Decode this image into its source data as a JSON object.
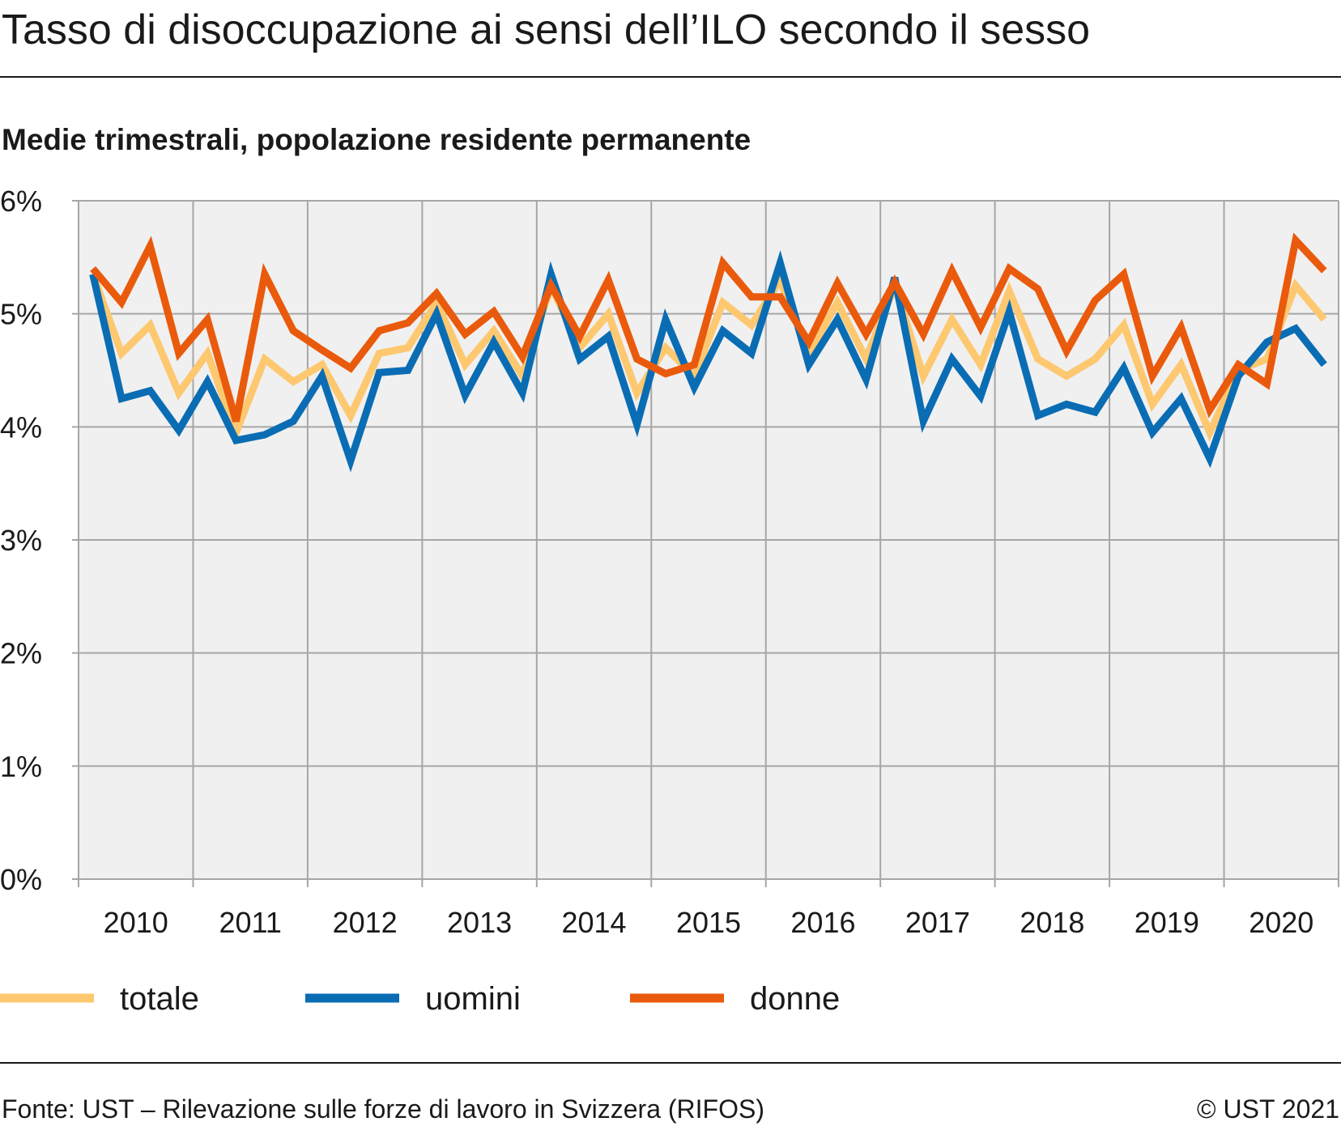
{
  "chart_data": {
    "type": "line",
    "title": "Tasso di disoccupazione ai sensi dell’ILO secondo il sesso",
    "subtitle": "Medie trimestrali, popolazione residente permanente",
    "categories": [
      "2010",
      null,
      null,
      null,
      "2011",
      null,
      null,
      null,
      "2012",
      null,
      null,
      null,
      "2013",
      null,
      null,
      null,
      "2014",
      null,
      null,
      null,
      "2015",
      null,
      null,
      null,
      "2016",
      null,
      null,
      null,
      "2017",
      null,
      null,
      null,
      "2018",
      null,
      null,
      null,
      "2019",
      null,
      null,
      null,
      "2020",
      null,
      null,
      null
    ],
    "series": [
      {
        "name": "totale",
        "color": "#fdc86f",
        "values": [
          5.35,
          4.65,
          4.9,
          4.3,
          4.65,
          3.95,
          4.6,
          4.4,
          4.55,
          4.1,
          4.65,
          4.7,
          5.1,
          4.55,
          4.85,
          4.45,
          5.25,
          4.7,
          5.0,
          4.3,
          4.7,
          4.45,
          5.1,
          4.9,
          5.3,
          4.65,
          5.1,
          4.6,
          5.25,
          4.45,
          4.95,
          4.55,
          5.2,
          4.6,
          4.45,
          4.6,
          4.9,
          4.2,
          4.55,
          3.95,
          4.5,
          4.6,
          5.25,
          4.95
        ]
      },
      {
        "name": "uomini",
        "color": "#0a6db4",
        "values": [
          5.35,
          4.25,
          4.32,
          3.97,
          4.4,
          3.88,
          3.93,
          4.05,
          4.45,
          3.7,
          4.48,
          4.5,
          5.0,
          4.28,
          4.75,
          4.3,
          5.35,
          4.6,
          4.8,
          4.02,
          4.95,
          4.35,
          4.85,
          4.65,
          5.45,
          4.55,
          4.95,
          4.42,
          5.32,
          4.05,
          4.6,
          4.27,
          5.02,
          4.1,
          4.2,
          4.13,
          4.52,
          3.95,
          4.25,
          3.72,
          4.45,
          4.75,
          4.87,
          4.55
        ]
      },
      {
        "name": "donne",
        "color": "#ea5a0c",
        "values": [
          5.4,
          5.1,
          5.6,
          4.65,
          4.95,
          4.05,
          5.35,
          4.85,
          4.68,
          4.52,
          4.85,
          4.92,
          5.18,
          4.82,
          5.02,
          4.62,
          5.25,
          4.8,
          5.3,
          4.6,
          4.47,
          4.55,
          5.45,
          5.15,
          5.15,
          4.75,
          5.27,
          4.82,
          5.28,
          4.82,
          5.38,
          4.88,
          5.4,
          5.22,
          4.67,
          5.12,
          5.35,
          4.45,
          4.88,
          4.15,
          4.55,
          4.38,
          5.65,
          5.38
        ]
      }
    ],
    "ylim": [
      0,
      6
    ],
    "yticks": [
      {
        "value": 0,
        "label": "0%"
      },
      {
        "value": 1,
        "label": "1%"
      },
      {
        "value": 2,
        "label": "2%"
      },
      {
        "value": 3,
        "label": "3%"
      },
      {
        "value": 4,
        "label": "4%"
      },
      {
        "value": 5,
        "label": "5%"
      },
      {
        "value": 6,
        "label": "6%"
      }
    ],
    "grid": true,
    "source": "Fonte: UST – Rilevazione sulle forze di lavoro in Svizzera (RIFOS)",
    "copyright": "© UST 2021"
  }
}
